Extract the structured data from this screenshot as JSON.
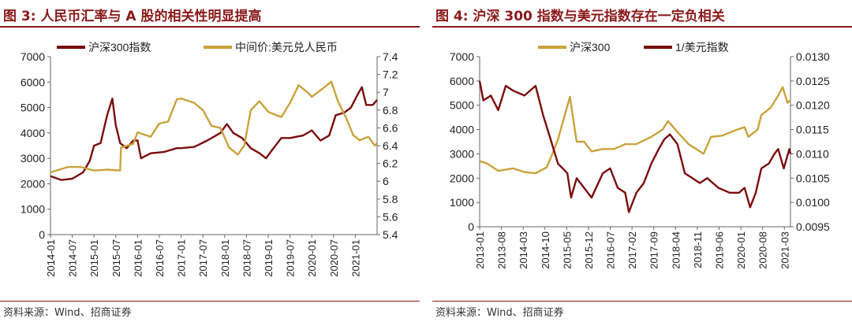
{
  "panels": [
    {
      "title": "图 3:  人民币汇率与 A 股的相关性明显提高",
      "source": "资料来源：Wind、招商证券"
    },
    {
      "title": "图 4:  沪深 300 指数与美元指数存在一定负相关",
      "source": "资料来源：Wind、招商证券"
    }
  ],
  "chart_data": [
    {
      "type": "line",
      "legend_position": "top",
      "grid": false,
      "x_ticks": [
        "2014-01",
        "2014-07",
        "2015-01",
        "2015-07",
        "2016-01",
        "2016-07",
        "2017-01",
        "2017-07",
        "2018-01",
        "2018-07",
        "2019-01",
        "2019-07",
        "2020-01",
        "2020-07",
        "2021-01"
      ],
      "x_range": [
        2014.0,
        2021.5
      ],
      "y_left": {
        "range": [
          0,
          7000
        ],
        "ticks": [
          "0",
          "1000",
          "2000",
          "3000",
          "4000",
          "5000",
          "6000",
          "7000"
        ]
      },
      "y_right": {
        "range": [
          5.4,
          7.4
        ],
        "ticks": [
          "5.4",
          "5.6",
          "5.8",
          "6",
          "6.2",
          "6.4",
          "6.6",
          "6.8",
          "7",
          "7.2",
          "7.4"
        ]
      },
      "series": [
        {
          "name": "沪深300指数",
          "color": "#7b0d0d",
          "axis": "left",
          "points": [
            [
              2014.0,
              2300
            ],
            [
              2014.25,
              2150
            ],
            [
              2014.5,
              2200
            ],
            [
              2014.75,
              2450
            ],
            [
              2014.9,
              2900
            ],
            [
              2015.0,
              3500
            ],
            [
              2015.15,
              3600
            ],
            [
              2015.3,
              4700
            ],
            [
              2015.42,
              5350
            ],
            [
              2015.5,
              4300
            ],
            [
              2015.6,
              3600
            ],
            [
              2015.75,
              3400
            ],
            [
              2015.9,
              3700
            ],
            [
              2016.0,
              3700
            ],
            [
              2016.08,
              3000
            ],
            [
              2016.3,
              3200
            ],
            [
              2016.6,
              3250
            ],
            [
              2016.9,
              3400
            ],
            [
              2017.0,
              3400
            ],
            [
              2017.3,
              3450
            ],
            [
              2017.6,
              3700
            ],
            [
              2017.9,
              4000
            ],
            [
              2018.05,
              4350
            ],
            [
              2018.2,
              4000
            ],
            [
              2018.4,
              3800
            ],
            [
              2018.6,
              3400
            ],
            [
              2018.8,
              3200
            ],
            [
              2018.95,
              3000
            ],
            [
              2019.1,
              3350
            ],
            [
              2019.3,
              3800
            ],
            [
              2019.5,
              3800
            ],
            [
              2019.8,
              3900
            ],
            [
              2020.0,
              4100
            ],
            [
              2020.2,
              3700
            ],
            [
              2020.4,
              3900
            ],
            [
              2020.55,
              4700
            ],
            [
              2020.75,
              4800
            ],
            [
              2020.9,
              5000
            ],
            [
              2021.05,
              5500
            ],
            [
              2021.15,
              5800
            ],
            [
              2021.25,
              5100
            ],
            [
              2021.4,
              5100
            ],
            [
              2021.5,
              5300
            ]
          ]
        },
        {
          "name": "中间价:美元兑人民币",
          "color": "#c9a23a",
          "axis": "right",
          "points": [
            [
              2014.0,
              6.1
            ],
            [
              2014.2,
              6.13
            ],
            [
              2014.4,
              6.16
            ],
            [
              2014.7,
              6.16
            ],
            [
              2015.0,
              6.12
            ],
            [
              2015.3,
              6.13
            ],
            [
              2015.6,
              6.12
            ],
            [
              2015.62,
              6.38
            ],
            [
              2015.9,
              6.42
            ],
            [
              2016.0,
              6.55
            ],
            [
              2016.3,
              6.5
            ],
            [
              2016.5,
              6.65
            ],
            [
              2016.7,
              6.67
            ],
            [
              2016.9,
              6.92
            ],
            [
              2017.0,
              6.93
            ],
            [
              2017.3,
              6.88
            ],
            [
              2017.5,
              6.8
            ],
            [
              2017.7,
              6.62
            ],
            [
              2017.9,
              6.6
            ],
            [
              2018.1,
              6.38
            ],
            [
              2018.3,
              6.3
            ],
            [
              2018.45,
              6.4
            ],
            [
              2018.6,
              6.8
            ],
            [
              2018.8,
              6.9
            ],
            [
              2019.0,
              6.78
            ],
            [
              2019.3,
              6.72
            ],
            [
              2019.5,
              6.88
            ],
            [
              2019.7,
              7.08
            ],
            [
              2019.9,
              7.0
            ],
            [
              2020.0,
              6.95
            ],
            [
              2020.3,
              7.06
            ],
            [
              2020.45,
              7.12
            ],
            [
              2020.6,
              6.9
            ],
            [
              2020.8,
              6.7
            ],
            [
              2020.95,
              6.52
            ],
            [
              2021.1,
              6.46
            ],
            [
              2021.3,
              6.5
            ],
            [
              2021.45,
              6.4
            ],
            [
              2021.5,
              6.43
            ]
          ]
        }
      ]
    },
    {
      "type": "line",
      "legend_position": "top",
      "grid": false,
      "x_ticks": [
        "2013-01",
        "2013-08",
        "2014-03",
        "2014-10",
        "2015-05",
        "2015-12",
        "2016-07",
        "2017-02",
        "2017-09",
        "2018-04",
        "2018-11",
        "2019-06",
        "2020-01",
        "2020-08",
        "2021-03"
      ],
      "x_range": [
        2013.0,
        2021.33
      ],
      "y_left": {
        "range": [
          0,
          7000
        ],
        "ticks": [
          "0",
          "1000",
          "2000",
          "3000",
          "4000",
          "5000",
          "6000",
          "7000"
        ]
      },
      "y_right": {
        "range": [
          0.0095,
          0.013
        ],
        "ticks": [
          "0.0095",
          "0.0100",
          "0.0105",
          "0.0110",
          "0.0115",
          "0.0120",
          "0.0125",
          "0.0130"
        ]
      },
      "series": [
        {
          "name": "沪深300",
          "color": "#c9a23a",
          "axis": "left",
          "points": [
            [
              2013.0,
              2700
            ],
            [
              2013.2,
              2600
            ],
            [
              2013.5,
              2300
            ],
            [
              2013.9,
              2400
            ],
            [
              2014.2,
              2250
            ],
            [
              2014.5,
              2200
            ],
            [
              2014.8,
              2450
            ],
            [
              2014.95,
              3000
            ],
            [
              2015.1,
              3600
            ],
            [
              2015.3,
              4700
            ],
            [
              2015.42,
              5350
            ],
            [
              2015.52,
              4300
            ],
            [
              2015.6,
              3500
            ],
            [
              2015.8,
              3500
            ],
            [
              2016.0,
              3100
            ],
            [
              2016.3,
              3200
            ],
            [
              2016.6,
              3200
            ],
            [
              2016.9,
              3400
            ],
            [
              2017.2,
              3400
            ],
            [
              2017.6,
              3700
            ],
            [
              2017.9,
              4000
            ],
            [
              2018.05,
              4350
            ],
            [
              2018.3,
              3900
            ],
            [
              2018.6,
              3400
            ],
            [
              2018.9,
              3100
            ],
            [
              2019.0,
              3000
            ],
            [
              2019.2,
              3700
            ],
            [
              2019.5,
              3750
            ],
            [
              2019.9,
              4000
            ],
            [
              2020.1,
              4100
            ],
            [
              2020.2,
              3700
            ],
            [
              2020.45,
              4000
            ],
            [
              2020.55,
              4600
            ],
            [
              2020.8,
              4900
            ],
            [
              2021.0,
              5400
            ],
            [
              2021.12,
              5750
            ],
            [
              2021.25,
              5100
            ],
            [
              2021.33,
              5200
            ]
          ]
        },
        {
          "name": "1/美元指数",
          "color": "#7b0d0d",
          "axis": "right",
          "points": [
            [
              2013.0,
              0.0125
            ],
            [
              2013.1,
              0.0121
            ],
            [
              2013.3,
              0.0122
            ],
            [
              2013.5,
              0.0119
            ],
            [
              2013.7,
              0.0124
            ],
            [
              2013.9,
              0.0123
            ],
            [
              2014.2,
              0.0122
            ],
            [
              2014.5,
              0.0124
            ],
            [
              2014.7,
              0.0118
            ],
            [
              2014.9,
              0.0113
            ],
            [
              2015.1,
              0.0108
            ],
            [
              2015.35,
              0.0106
            ],
            [
              2015.45,
              0.0101
            ],
            [
              2015.6,
              0.0105
            ],
            [
              2015.8,
              0.0103
            ],
            [
              2016.0,
              0.0101
            ],
            [
              2016.3,
              0.0106
            ],
            [
              2016.5,
              0.0107
            ],
            [
              2016.7,
              0.0103
            ],
            [
              2016.9,
              0.0102
            ],
            [
              2017.0,
              0.0098
            ],
            [
              2017.2,
              0.0102
            ],
            [
              2017.4,
              0.0104
            ],
            [
              2017.6,
              0.0108
            ],
            [
              2017.8,
              0.0111
            ],
            [
              2017.95,
              0.0113
            ],
            [
              2018.1,
              0.0114
            ],
            [
              2018.3,
              0.0112
            ],
            [
              2018.5,
              0.0106
            ],
            [
              2018.7,
              0.0105
            ],
            [
              2018.9,
              0.0104
            ],
            [
              2019.1,
              0.0105
            ],
            [
              2019.4,
              0.0103
            ],
            [
              2019.7,
              0.0102
            ],
            [
              2019.95,
              0.0102
            ],
            [
              2020.1,
              0.0103
            ],
            [
              2020.25,
              0.0099
            ],
            [
              2020.4,
              0.0102
            ],
            [
              2020.55,
              0.0107
            ],
            [
              2020.75,
              0.0108
            ],
            [
              2020.9,
              0.011
            ],
            [
              2021.0,
              0.0111
            ],
            [
              2021.15,
              0.0107
            ],
            [
              2021.3,
              0.0111
            ],
            [
              2021.33,
              0.011
            ]
          ]
        }
      ]
    }
  ]
}
